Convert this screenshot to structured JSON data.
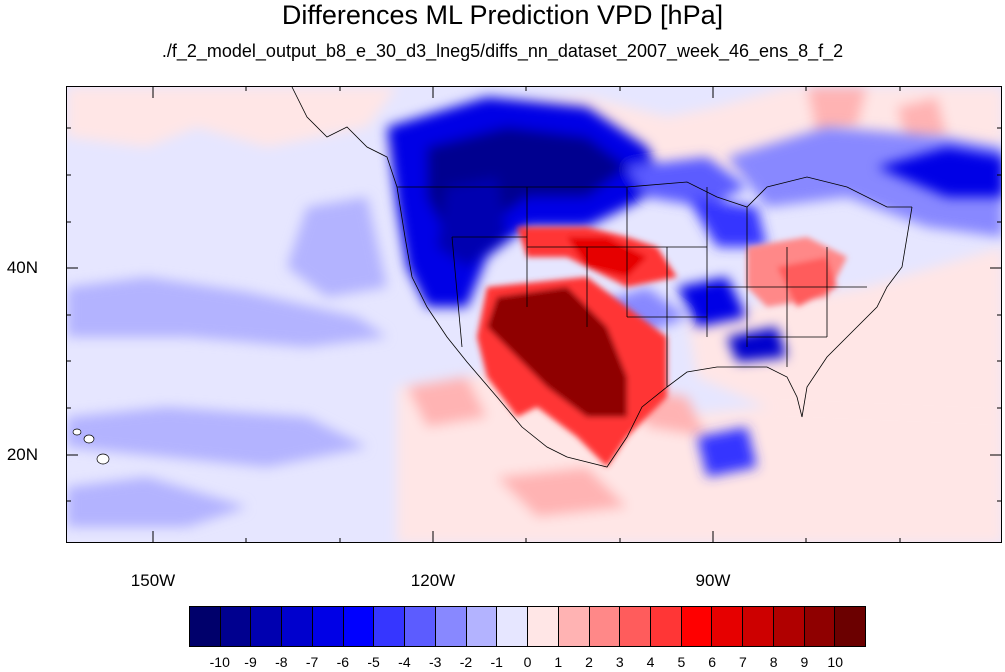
{
  "title": "Differences ML Prediction VPD [hPa]",
  "subtitle": "./f_2_model_output_b8_e_30_d3_lneg5/diffs_nn_dataset_2007_week_46_ens_8_f_2",
  "map": {
    "lon_range": [
      -160,
      -60
    ],
    "lat_range": [
      10,
      59
    ],
    "lat_labels": [
      {
        "lat": 40,
        "text": "40N"
      },
      {
        "lat": 20,
        "text": "20N"
      }
    ],
    "lon_labels": [
      {
        "lon": -150,
        "text": "150W"
      },
      {
        "lon": -120,
        "text": "120W"
      },
      {
        "lon": -90,
        "text": "90W"
      }
    ]
  },
  "colorbar": {
    "labels": [
      "-10",
      "-9",
      "-8",
      "-7",
      "-6",
      "-5",
      "-4",
      "-3",
      "-2",
      "-1",
      "0",
      "1",
      "2",
      "3",
      "4",
      "5",
      "6",
      "7",
      "8",
      "9",
      "10"
    ],
    "colors": [
      "#00006b",
      "#00008f",
      "#0000b0",
      "#0000cd",
      "#0000e6",
      "#0000ff",
      "#3636ff",
      "#5c5cff",
      "#8888ff",
      "#b3b3ff",
      "#e6e6ff",
      "#ffe6e6",
      "#ffb3b3",
      "#ff8888",
      "#ff5c5c",
      "#ff3636",
      "#ff0000",
      "#e60000",
      "#cd0000",
      "#b00000",
      "#8f0000",
      "#6b0000"
    ]
  }
}
